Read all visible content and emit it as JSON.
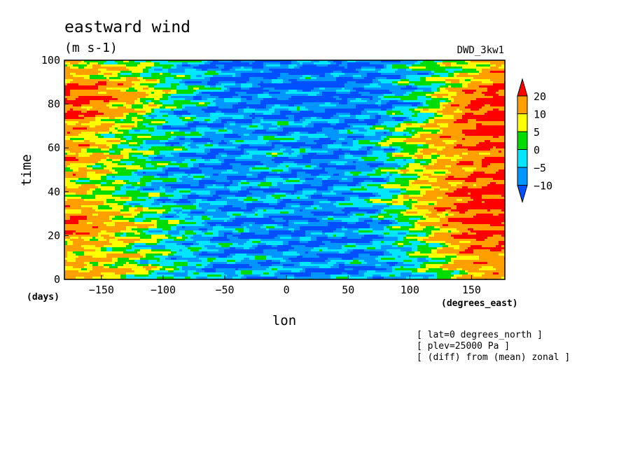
{
  "chart_data": {
    "type": "heatmap",
    "title": "eastward wind",
    "subtitle": "(m s-1)",
    "dataset_label": "DWD_3kw1",
    "xlabel": "lon",
    "ylabel": "time",
    "x_units": "(degrees_east)",
    "y_units": "(days)",
    "xlim": [
      -180,
      177
    ],
    "ylim": [
      0,
      100
    ],
    "xticks": [
      -150,
      -100,
      -50,
      0,
      50,
      100,
      150
    ],
    "yticks": [
      0,
      20,
      40,
      60,
      80,
      100
    ],
    "grid": false,
    "colorbar": {
      "placement": "right",
      "levels": [
        -10,
        -5,
        0,
        5,
        10,
        20
      ],
      "labels": [
        "20",
        "10",
        "5",
        "0",
        "−5",
        "−10"
      ],
      "colors": [
        "#0050ff",
        "#0096ff",
        "#00e6ff",
        "#00dc00",
        "#ffff00",
        "#ffa000",
        "#ff0000"
      ],
      "extend": "both"
    },
    "notes": [
      "[ lat=0 degrees_north ]",
      "[ plev=25000 Pa ]",
      "[ (diff) from (mean) zonal ]"
    ],
    "field_description": "Hovmoller of zonal wind anomaly; strong westerly (positive) bands near longitude edges (|lon|>120) and easterly (negative) values in the central band, with eastward-propagating streaks.",
    "grid_values": {
      "lon": [
        -170,
        -130,
        -90,
        -50,
        -10,
        30,
        70,
        110,
        150,
        170
      ],
      "time": [
        5,
        15,
        25,
        35,
        45,
        55,
        65,
        75,
        85,
        95
      ],
      "u": [
        [
          12,
          8,
          -2,
          -8,
          -6,
          -9,
          -8,
          0,
          12,
          14
        ],
        [
          10,
          5,
          -3,
          -7,
          -8,
          -9,
          -7,
          2,
          18,
          18
        ],
        [
          20,
          10,
          -1,
          -8,
          -9,
          -10,
          -8,
          6,
          22,
          22
        ],
        [
          12,
          3,
          -5,
          -8,
          -6,
          -8,
          -3,
          10,
          24,
          24
        ],
        [
          8,
          0,
          -7,
          -9,
          -5,
          -10,
          -5,
          8,
          18,
          22
        ],
        [
          14,
          5,
          -5,
          -10,
          -6,
          -10,
          -6,
          6,
          16,
          20
        ],
        [
          12,
          2,
          -4,
          -7,
          -5,
          -9,
          -3,
          10,
          20,
          22
        ],
        [
          20,
          8,
          -5,
          -8,
          -8,
          -10,
          -9,
          0,
          22,
          24
        ],
        [
          22,
          14,
          2,
          -9,
          -10,
          -11,
          -9,
          -2,
          18,
          24
        ],
        [
          10,
          6,
          -3,
          -9,
          -10,
          -11,
          -9,
          -1,
          6,
          14
        ]
      ]
    }
  }
}
